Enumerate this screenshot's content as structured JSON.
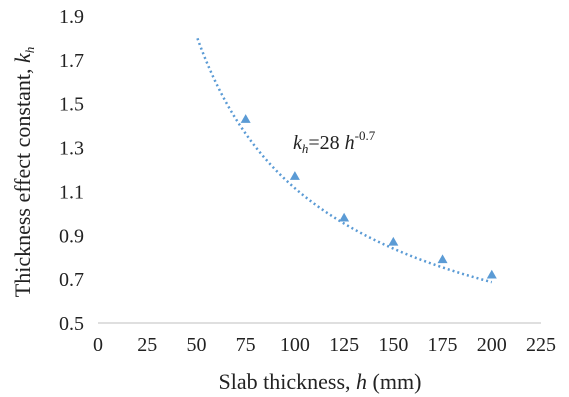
{
  "chart_data": {
    "type": "scatter",
    "xlabel": {
      "text": "Slab thickness, ",
      "var": "h",
      "unit": " (mm)"
    },
    "ylabel": {
      "text": "Thickness effect constant, ",
      "var": "k",
      "sub": "h"
    },
    "xlim": [
      0,
      225
    ],
    "ylim": [
      0.5,
      1.9
    ],
    "x_ticks": [
      "0",
      "25",
      "50",
      "75",
      "100",
      "125",
      "150",
      "175",
      "200",
      "225"
    ],
    "y_ticks": [
      "0.5",
      "0.7",
      "0.9",
      "1.1",
      "1.3",
      "1.5",
      "1.7",
      "1.9"
    ],
    "grid": false,
    "series": [
      {
        "marker": "triangle",
        "color": "#5B9BD5",
        "points": [
          {
            "x": 75,
            "y": 1.43
          },
          {
            "x": 100,
            "y": 1.17
          },
          {
            "x": 125,
            "y": 0.98
          },
          {
            "x": 150,
            "y": 0.87
          },
          {
            "x": 175,
            "y": 0.79
          },
          {
            "x": 200,
            "y": 0.72
          }
        ]
      }
    ],
    "trendline": {
      "type": "power",
      "coefficient": 28,
      "exponent": -0.7,
      "style": "dotted",
      "color": "#5B9BD5",
      "x_from": 50.5,
      "x_to": 200
    },
    "annotation": {
      "var": "k",
      "sub": "h",
      "eq": "=28 ",
      "var2": "h",
      "exp": "-0.7"
    }
  }
}
